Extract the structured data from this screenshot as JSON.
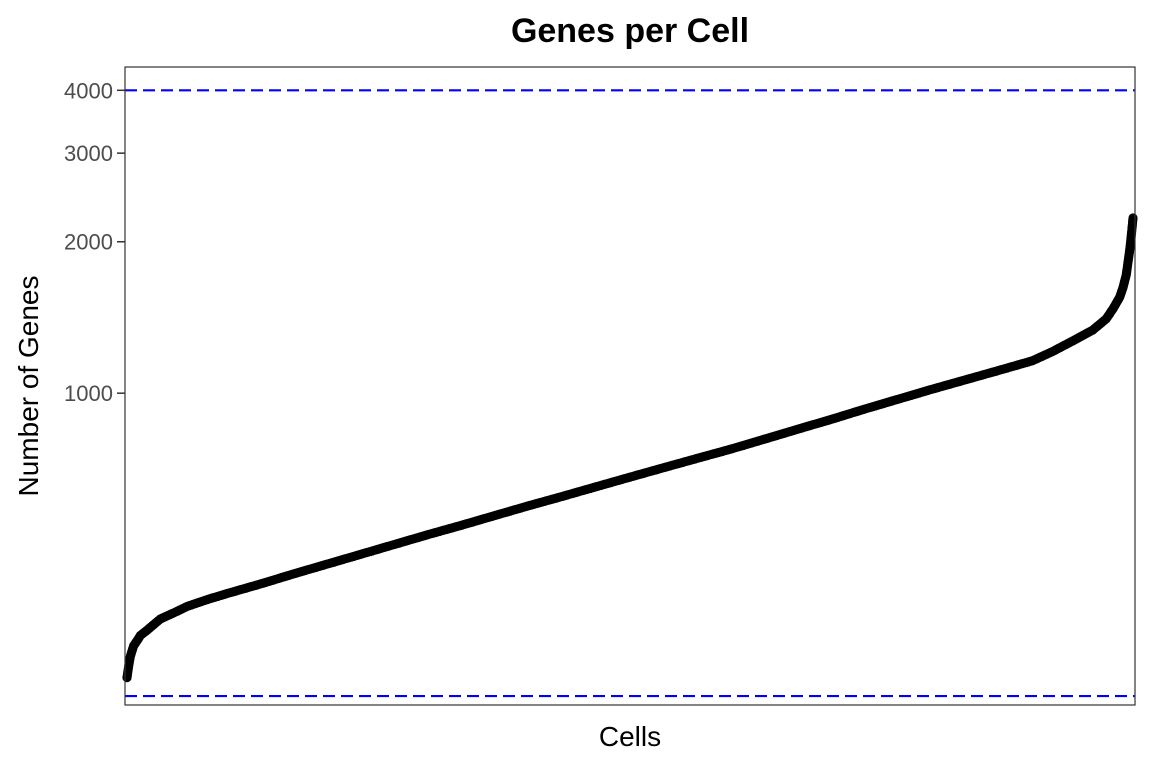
{
  "chart_data": {
    "type": "scatter",
    "title": "Genes per Cell",
    "xlabel": "Cells",
    "ylabel": "Number of Genes",
    "y_scale": "log10",
    "ylim": [
      240,
      4450
    ],
    "y_ticks": [
      1000,
      2000,
      3000,
      4000
    ],
    "y_tick_labels": [
      "1000",
      "2000",
      "3000",
      "4000"
    ],
    "x_ticks": [],
    "grid": false,
    "legend": "none",
    "point_color": "#000000",
    "reference_line_color": "#0000ff",
    "reference_lines": [
      {
        "orientation": "horizontal",
        "y": 4000,
        "style": "dashed"
      },
      {
        "orientation": "horizontal",
        "y": 250,
        "style": "dashed"
      }
    ],
    "series": [
      {
        "description": "cells sorted by number of genes",
        "points": [
          [
            0,
            272
          ],
          [
            0.5,
            287
          ],
          [
            1,
            300
          ],
          [
            2,
            315
          ],
          [
            3,
            322
          ],
          [
            4,
            330
          ],
          [
            6,
            338
          ],
          [
            8,
            347
          ],
          [
            10,
            356
          ],
          [
            14,
            366
          ],
          [
            18,
            377
          ],
          [
            24,
            389
          ],
          [
            30,
            400
          ],
          [
            40,
            418
          ],
          [
            50,
            438
          ],
          [
            60,
            458
          ],
          [
            70,
            479
          ],
          [
            80,
            501
          ],
          [
            90,
            524
          ],
          [
            100,
            547
          ],
          [
            110,
            572
          ],
          [
            120,
            598
          ],
          [
            130,
            624
          ],
          [
            140,
            652
          ],
          [
            150,
            681
          ],
          [
            160,
            711
          ],
          [
            170,
            742
          ],
          [
            180,
            774
          ],
          [
            190,
            810
          ],
          [
            200,
            848
          ],
          [
            210,
            887
          ],
          [
            220,
            930
          ],
          [
            230,
            973
          ],
          [
            240,
            1018
          ],
          [
            250,
            1063
          ],
          [
            260,
            1110
          ],
          [
            270,
            1160
          ],
          [
            276,
            1210
          ],
          [
            282,
            1270
          ],
          [
            288,
            1335
          ],
          [
            292,
            1405
          ],
          [
            294,
            1470
          ],
          [
            296,
            1550
          ],
          [
            297,
            1620
          ],
          [
            298,
            1720
          ],
          [
            298.5,
            1820
          ],
          [
            299,
            1920
          ],
          [
            299.5,
            2060
          ],
          [
            300,
            2230
          ]
        ]
      }
    ]
  }
}
